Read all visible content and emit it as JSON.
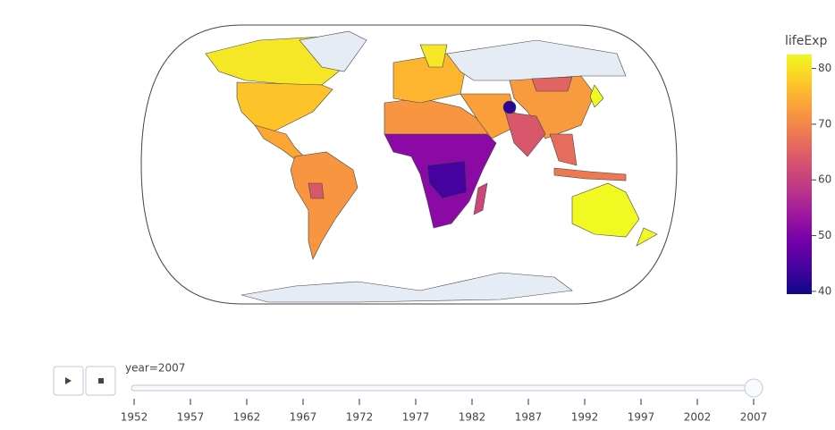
{
  "colorbar": {
    "title": "lifeExp",
    "range": [
      39.5,
      82.5
    ],
    "ticks": [
      40,
      50,
      60,
      70,
      80
    ]
  },
  "slider": {
    "label": "year=2007",
    "steps": [
      1952,
      1957,
      1962,
      1967,
      1972,
      1977,
      1982,
      1987,
      1992,
      1997,
      2002,
      2007
    ],
    "active": 11
  }
}
